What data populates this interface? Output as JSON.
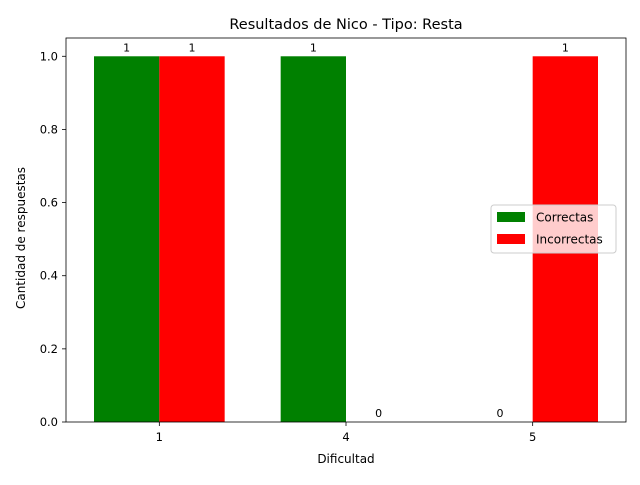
{
  "chart_data": {
    "type": "bar",
    "title": "Resultados de Nico - Tipo: Resta",
    "xlabel": "Dificultad",
    "ylabel": "Cantidad de respuestas",
    "categories": [
      "1",
      "4",
      "5"
    ],
    "series": [
      {
        "name": "Correctas",
        "color": "#008000",
        "values": [
          1,
          1,
          0
        ]
      },
      {
        "name": "Incorrectas",
        "color": "#ff0000",
        "values": [
          1,
          0,
          1
        ]
      }
    ],
    "ylim": [
      0,
      1.05
    ],
    "yticks": [
      "0.0",
      "0.2",
      "0.4",
      "0.6",
      "0.8",
      "1.0"
    ],
    "data_labels": true,
    "grid": false,
    "legend_position": "center-right"
  }
}
